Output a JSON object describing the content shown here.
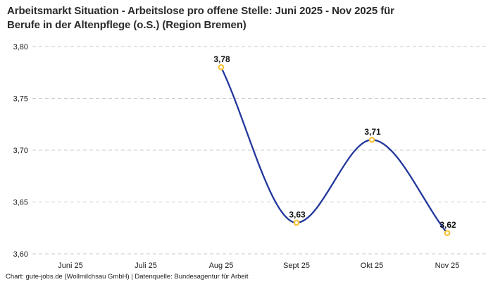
{
  "title": {
    "full": "Arbeitsmarkt Situation - Arbeitslose pro offene Stelle: Juni 2025 - Nov 2025 für Berufe in der Altenpflege (o.S.) (Region Bremen)",
    "lines": [
      "Arbeitsmarkt Situation - Arbeitslose pro offene Stelle: Juni 2025 - Nov 2025 für",
      "Berufe in der Altenpflege (o.S.) (Region Bremen)"
    ]
  },
  "footer": {
    "text": "Chart: gute-jobs.de (Wollmilchsau GmbH) | Datenquelle: Bundesagentur für Arbeit"
  },
  "chart_data": {
    "type": "line",
    "title": "Arbeitsmarkt Situation - Arbeitslose pro offene Stelle: Juni 2025 - Nov 2025 für Berufe in der Altenpflege (o.S.) (Region Bremen)",
    "categories": [
      "Juni 25",
      "Juli 25",
      "Aug 25",
      "Sept 25",
      "Okt 25",
      "Nov 25"
    ],
    "values": [
      null,
      null,
      3.78,
      3.63,
      3.71,
      3.62
    ],
    "point_labels": [
      null,
      null,
      "3,78",
      "3,63",
      "3,71",
      "3,62"
    ],
    "ylim": [
      3.6,
      3.8
    ],
    "y_ticks": [
      3.8,
      3.75,
      3.7,
      3.65,
      3.6
    ],
    "y_tick_labels": [
      "3,80",
      "3,75",
      "3,70",
      "3,65",
      "3,60"
    ],
    "xlabel": "",
    "ylabel": "",
    "legend": "none",
    "grid": "horizontal-dashed",
    "line_style": "smooth-monotone",
    "colors": {
      "line": "#24389c",
      "marker_stroke": "#f8c33c",
      "marker_fill": "#ffffff",
      "grid": "#c9c9c9",
      "axis_text": "#1a1a1a",
      "point_label_text": "#111111"
    }
  }
}
